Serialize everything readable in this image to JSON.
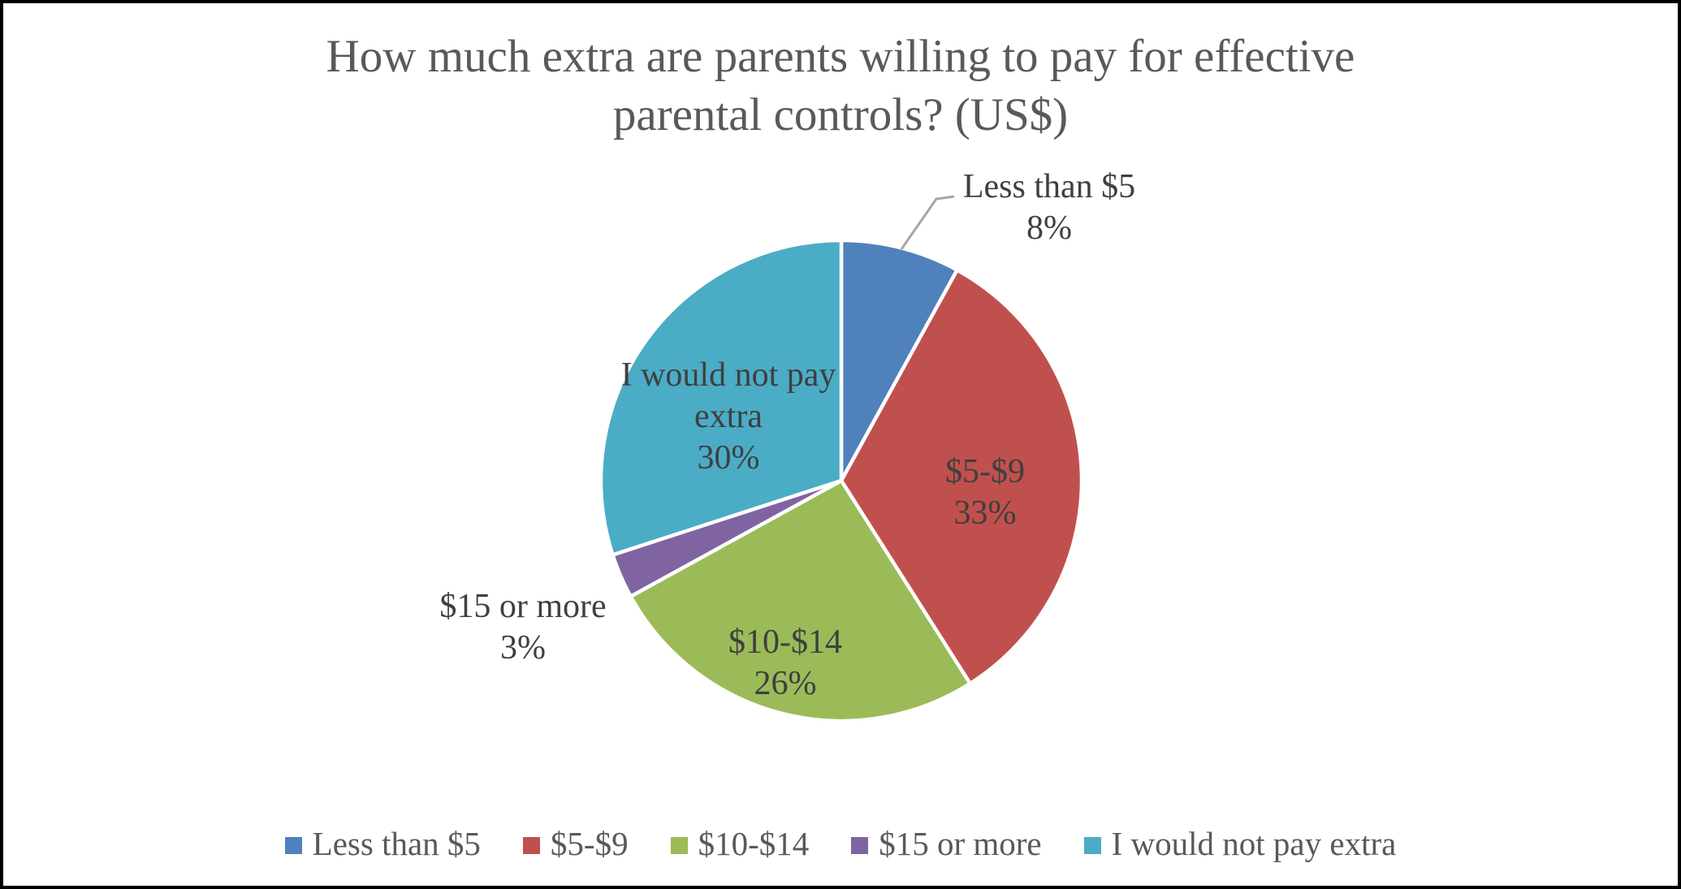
{
  "title": {
    "line1": "How much extra are parents willing to pay for effective",
    "line2": "parental controls? (US$)"
  },
  "chart_data": {
    "type": "pie",
    "title": "How much extra are parents willing to pay for effective parental controls? (US$)",
    "unit": "percent",
    "start_angle": "top",
    "direction": "clockwise",
    "legend_position": "bottom",
    "series": [
      {
        "label": "Less than $5",
        "value": 8,
        "pct_label": "8%",
        "color": "#4F81BD",
        "label_placement": "outside-callout"
      },
      {
        "label": "$5-$9",
        "value": 33,
        "pct_label": "33%",
        "color": "#C0504D",
        "label_placement": "inside"
      },
      {
        "label": "$10-$14",
        "value": 26,
        "pct_label": "26%",
        "color": "#9BBB59",
        "label_placement": "inside"
      },
      {
        "label": "$15 or more",
        "value": 3,
        "pct_label": "3%",
        "color": "#8064A2",
        "label_placement": "outside"
      },
      {
        "label": "I would not pay extra",
        "value": 30,
        "pct_label": "30%",
        "color": "#4BACC6",
        "label_placement": "inside"
      }
    ]
  },
  "styles": {
    "title_color": "#595959",
    "data_label_color": "#3F3F3F",
    "legend_text_color": "#595959",
    "leader_line_color": "#A6A6A6",
    "slice_border_color": "#FFFFFF",
    "canvas_border_color": "#000000",
    "background": "#FFFFFF"
  }
}
